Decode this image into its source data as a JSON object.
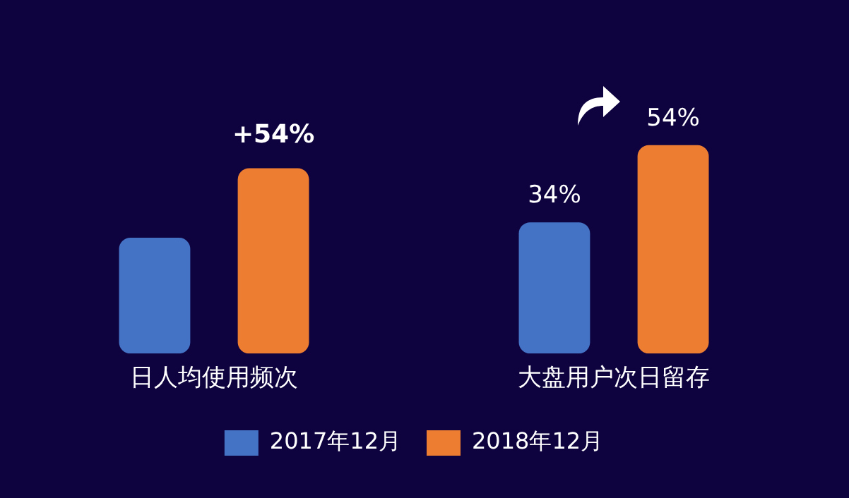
{
  "chart_data": {
    "type": "bar",
    "categories": [
      "日人均使用频次",
      "大盘用户次日留存"
    ],
    "series": [
      {
        "name": "2017年12月",
        "color": "#4472c4",
        "values": [
          30,
          34
        ],
        "value_labels": [
          null,
          "34%"
        ]
      },
      {
        "name": "2018年12月",
        "color": "#ed7d31",
        "values": [
          48,
          54
        ],
        "value_labels": [
          null,
          "54%"
        ]
      }
    ],
    "annotations": [
      "+54%"
    ],
    "tick_labels": "x",
    "legend": "bottom",
    "grid": false
  }
}
